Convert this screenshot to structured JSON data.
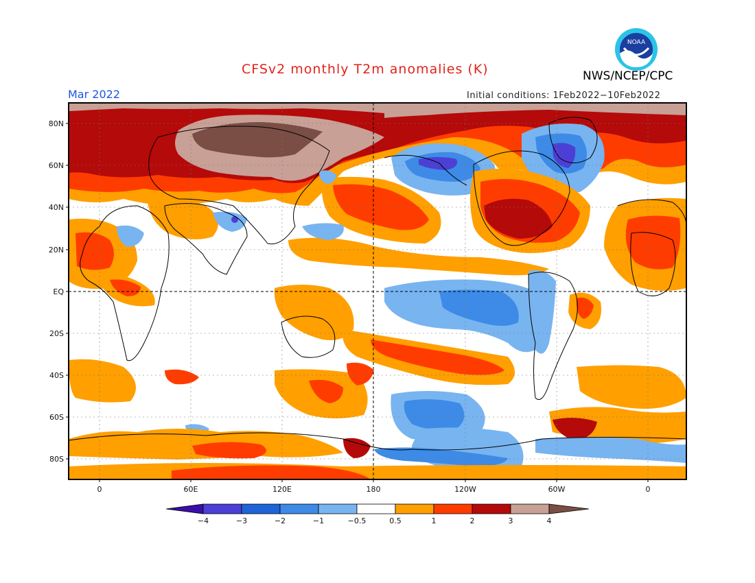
{
  "header": {
    "title": "CFSv2 monthly T2m anomalies (K)",
    "month": "Mar 2022",
    "initial_conditions": "Initial conditions: 1Feb2022−10Feb2022",
    "agency": "NWS/NCEP/CPC",
    "logo_text": "NOAA"
  },
  "map": {
    "lat_labels": [
      "80N",
      "60N",
      "40N",
      "20N",
      "EQ",
      "20S",
      "40S",
      "60S",
      "80S"
    ],
    "lon_labels": [
      "0",
      "60E",
      "120E",
      "180",
      "120W",
      "60W",
      "0"
    ]
  },
  "colorbar": {
    "labels": [
      "−4",
      "−3",
      "−2",
      "−1",
      "−0.5",
      "0.5",
      "1",
      "2",
      "3",
      "4"
    ],
    "colors": [
      "#3a0fa8",
      "#4b3fd6",
      "#1e64d8",
      "#3d8be6",
      "#78b4f0",
      "#ffffff",
      "#ff9f00",
      "#ff3c00",
      "#b40a0a",
      "#c8a096",
      "#7a4e44"
    ]
  }
}
